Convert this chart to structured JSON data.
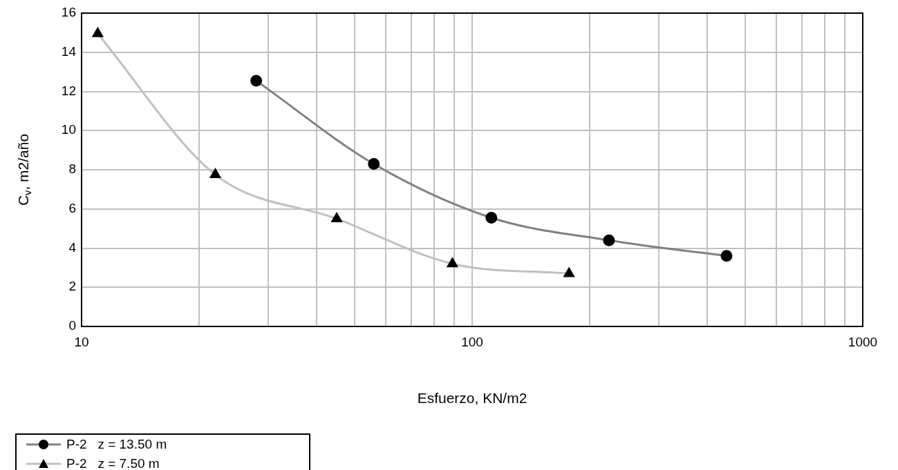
{
  "chart_data": {
    "type": "line",
    "xlabel": "Esfuerzo, KN/m2",
    "ylabel": "C$_{v}$, m2/año",
    "log": "x",
    "grid": true,
    "legend": "bottom left",
    "line_style": "solid",
    "xlim": [
      10,
      1000
    ],
    "xticks": [
      10,
      {
        "value": 20,
        "label": null
      },
      {
        "value": 30,
        "label": null
      },
      {
        "value": 40,
        "label": null
      },
      {
        "value": 50,
        "label": null
      },
      {
        "value": 60,
        "label": null
      },
      {
        "value": 70,
        "label": null
      },
      {
        "value": 80,
        "label": null
      },
      {
        "value": 90,
        "label": null
      },
      100,
      {
        "value": 200,
        "label": null
      },
      {
        "value": 300,
        "label": null
      },
      {
        "value": 400,
        "label": null
      },
      {
        "value": 500,
        "label": null
      },
      {
        "value": 600,
        "label": null
      },
      {
        "value": 700,
        "label": null
      },
      {
        "value": 800,
        "label": null
      },
      {
        "value": 900,
        "label": null
      },
      1000
    ],
    "ylim": [
      0,
      16
    ],
    "yticks": [
      0,
      2,
      4,
      6,
      8,
      10,
      12,
      14,
      16
    ],
    "series": [
      {
        "name": "P-2   z = 13.50 m",
        "color": "#808080",
        "marker": "circle",
        "x": [
          28,
          56,
          112,
          224,
          448
        ],
        "values": [
          12.55,
          8.3,
          5.55,
          4.4,
          3.6
        ]
      },
      {
        "name": "P-2   z = 7.50 m",
        "color": "#c0c0c0",
        "marker": "triangle",
        "x": [
          11,
          22,
          45,
          89,
          177
        ],
        "values": [
          14.95,
          7.75,
          5.5,
          3.2,
          2.7
        ]
      }
    ]
  }
}
